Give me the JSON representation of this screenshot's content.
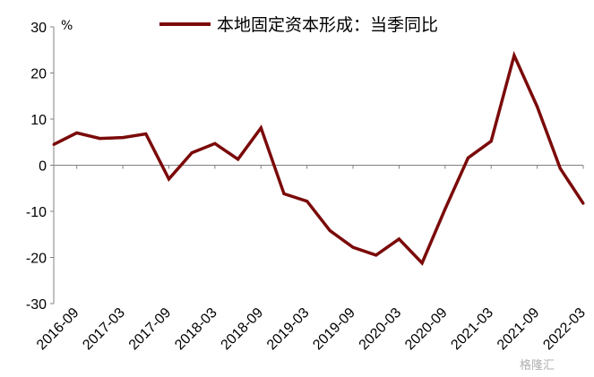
{
  "chart_data": {
    "type": "line",
    "unit": "%",
    "ylim": [
      -30,
      30
    ],
    "yticks": [
      -30,
      -20,
      -10,
      0,
      10,
      20,
      30
    ],
    "grid": false,
    "legend_position": "top",
    "x_tick_labels": [
      "2016-09",
      "2017-03",
      "2017-09",
      "2018-03",
      "2018-09",
      "2019-03",
      "2019-09",
      "2020-03",
      "2020-09",
      "2021-03",
      "2021-09",
      "2022-03"
    ],
    "x_tick_label_rotation": -45,
    "series": [
      {
        "name": "本地固定资本形成：当季同比",
        "color": "#7b0a0a",
        "x": [
          "2016-06",
          "2016-09",
          "2016-12",
          "2017-03",
          "2017-06",
          "2017-09",
          "2017-12",
          "2018-03",
          "2018-06",
          "2018-09",
          "2018-12",
          "2019-03",
          "2019-06",
          "2019-09",
          "2019-12",
          "2020-03",
          "2020-06",
          "2020-09",
          "2020-12",
          "2021-03",
          "2021-06",
          "2021-09",
          "2021-12",
          "2022-03"
        ],
        "values": [
          4.5,
          7.0,
          5.8,
          6.0,
          6.8,
          -3.0,
          2.7,
          4.7,
          1.3,
          8.1,
          -6.2,
          -7.8,
          -14.2,
          -17.8,
          -19.5,
          -16.0,
          -21.2,
          -9.5,
          1.6,
          5.2,
          23.8,
          12.7,
          -0.7,
          -8.3
        ]
      }
    ]
  },
  "watermark": "格隆汇"
}
